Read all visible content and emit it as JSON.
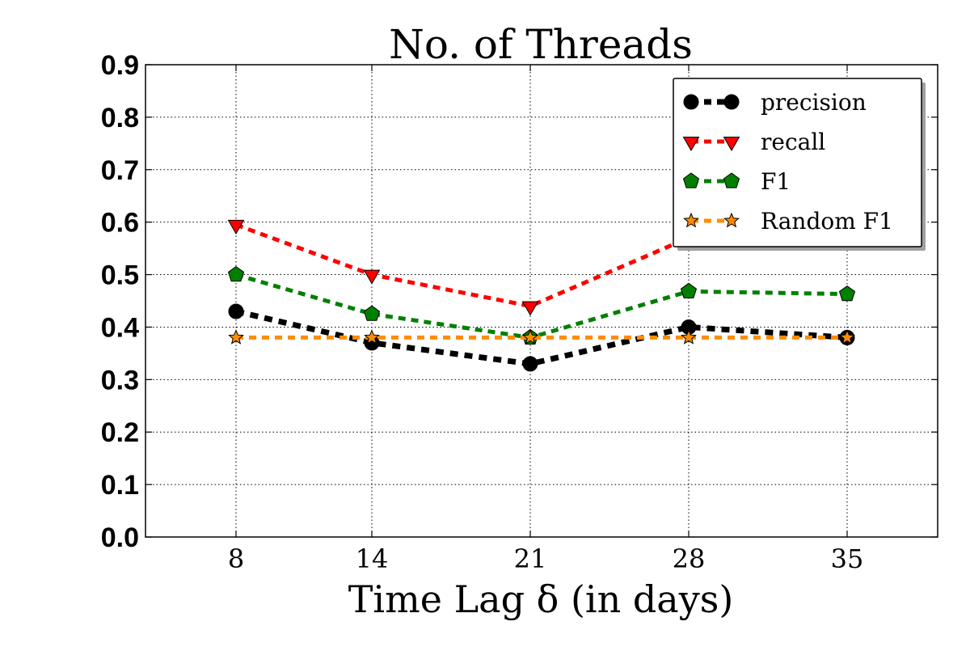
{
  "chart_data": {
    "type": "line",
    "title": "No. of Threads",
    "xlabel": "Time Lag δ (in days)",
    "ylabel": "",
    "x": [
      8,
      14,
      21,
      28,
      35
    ],
    "x_tick_labels": [
      "8",
      "14",
      "21",
      "28",
      "35"
    ],
    "xlim": [
      4,
      39
    ],
    "ylim": [
      0,
      0.9
    ],
    "y_ticks": [
      "0.0",
      "0.1",
      "0.2",
      "0.3",
      "0.4",
      "0.5",
      "0.6",
      "0.7",
      "0.8",
      "0.9"
    ],
    "grid": true,
    "legend_position": "top-right",
    "series": [
      {
        "name": "precision",
        "values": [
          0.43,
          0.37,
          0.33,
          0.4,
          0.38
        ],
        "color": "#000000",
        "marker": "circle"
      },
      {
        "name": "recall",
        "values": [
          0.595,
          0.5,
          0.44,
          0.57,
          null
        ],
        "color": "#ff0000",
        "marker": "triangle-down"
      },
      {
        "name": "F1",
        "values": [
          0.5,
          0.425,
          0.38,
          0.468,
          0.463
        ],
        "color": "#008000",
        "marker": "pentagon"
      },
      {
        "name": "Random F1",
        "values": [
          0.38,
          0.38,
          0.38,
          0.38,
          0.38
        ],
        "color": "#ff8c00",
        "marker": "star"
      }
    ]
  }
}
